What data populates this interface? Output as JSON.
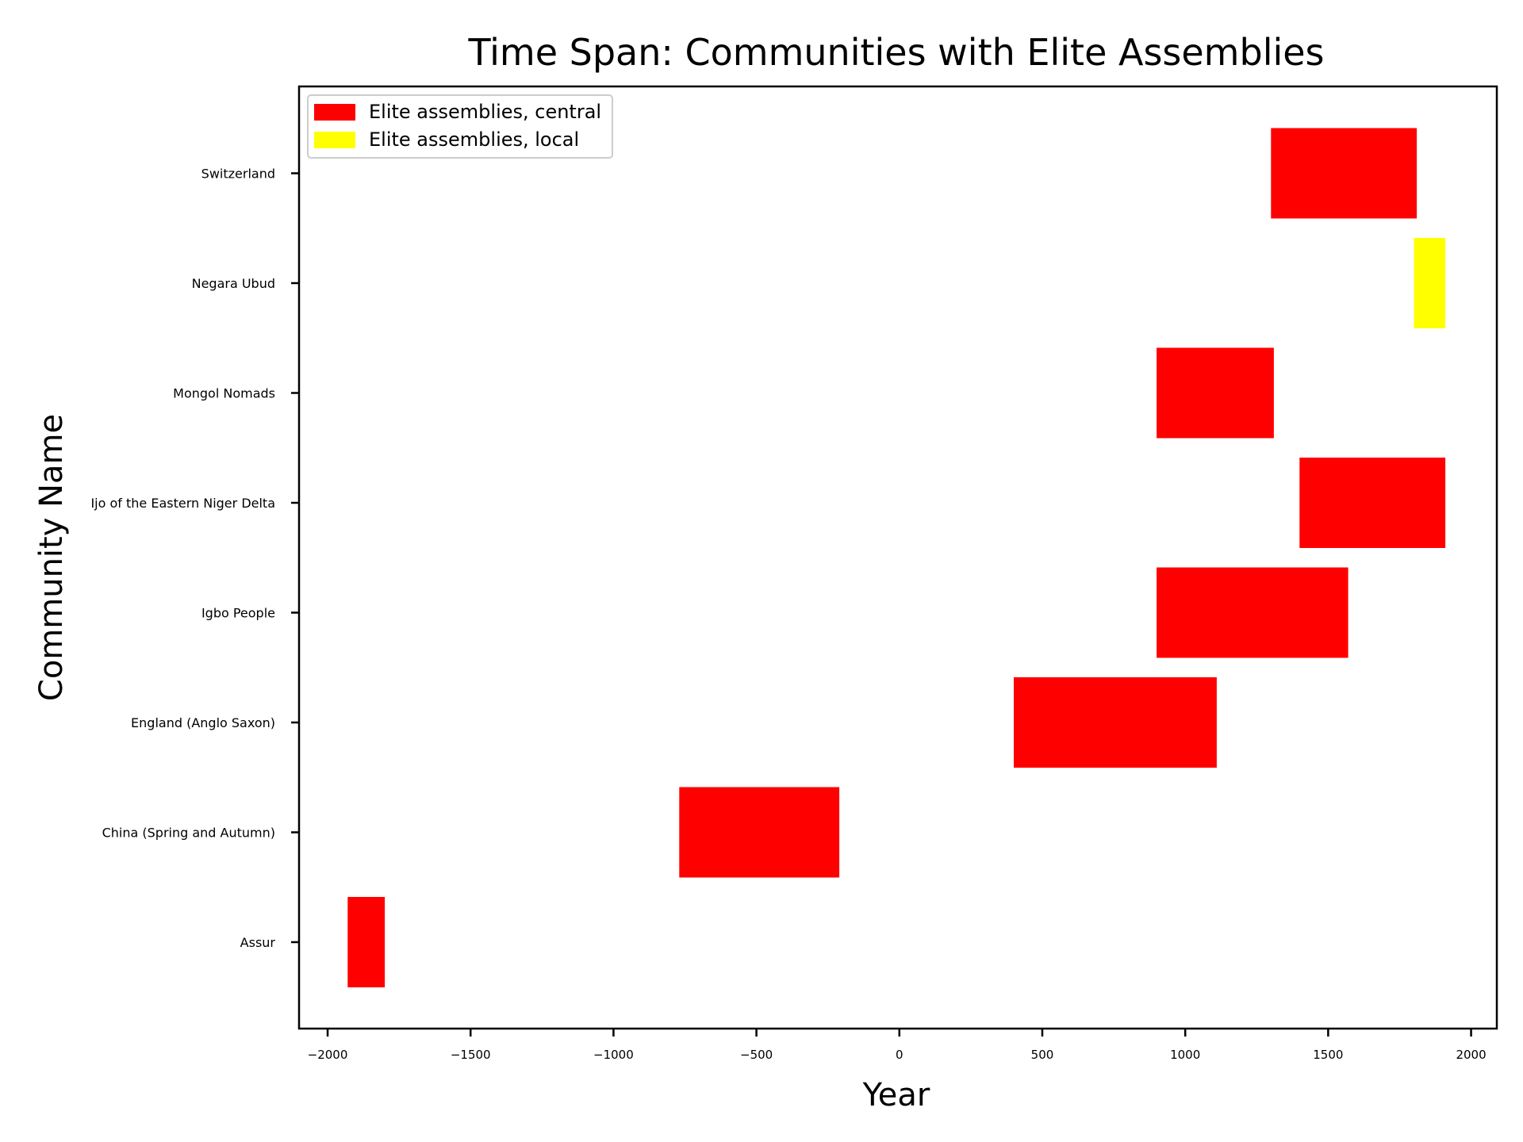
{
  "chart_data": {
    "type": "bar",
    "orientation": "horizontal",
    "title": "Time Span: Communities with Elite Assemblies",
    "xlabel": "Year",
    "ylabel": "Community Name",
    "xlim": [
      -2100,
      2090
    ],
    "xticks": [
      -2000,
      -1500,
      -1000,
      -500,
      0,
      500,
      1000,
      1500,
      2000
    ],
    "xtick_labels": [
      "−2000",
      "−1500",
      "−1000",
      "−500",
      "0",
      "500",
      "1000",
      "1500",
      "2000"
    ],
    "grid": false,
    "legend_position": "top-left",
    "legend": [
      {
        "label": "Elite assemblies, central",
        "color": "#ff0000"
      },
      {
        "label": "Elite assemblies, local",
        "color": "#ffff00"
      }
    ],
    "categories": [
      "Assur",
      "China (Spring and Autumn)",
      "England (Anglo Saxon)",
      "Igbo People",
      "Ijo of the Eastern Niger Delta",
      "Mongol Nomads",
      "Negara Ubud",
      "Switzerland"
    ],
    "bars": [
      {
        "category": "Assur",
        "start": -1930,
        "end": -1800,
        "type": "Elite assemblies, central"
      },
      {
        "category": "China (Spring and Autumn)",
        "start": -770,
        "end": -210,
        "type": "Elite assemblies, central"
      },
      {
        "category": "England (Anglo Saxon)",
        "start": 400,
        "end": 1110,
        "type": "Elite assemblies, central"
      },
      {
        "category": "Igbo People",
        "start": 900,
        "end": 1570,
        "type": "Elite assemblies, central"
      },
      {
        "category": "Ijo of the Eastern Niger Delta",
        "start": 1400,
        "end": 1910,
        "type": "Elite assemblies, central"
      },
      {
        "category": "Mongol Nomads",
        "start": 900,
        "end": 1310,
        "type": "Elite assemblies, central"
      },
      {
        "category": "Negara Ubud",
        "start": 1800,
        "end": 1910,
        "type": "Elite assemblies, local"
      },
      {
        "category": "Switzerland",
        "start": 1300,
        "end": 1810,
        "type": "Elite assemblies, central"
      }
    ]
  }
}
